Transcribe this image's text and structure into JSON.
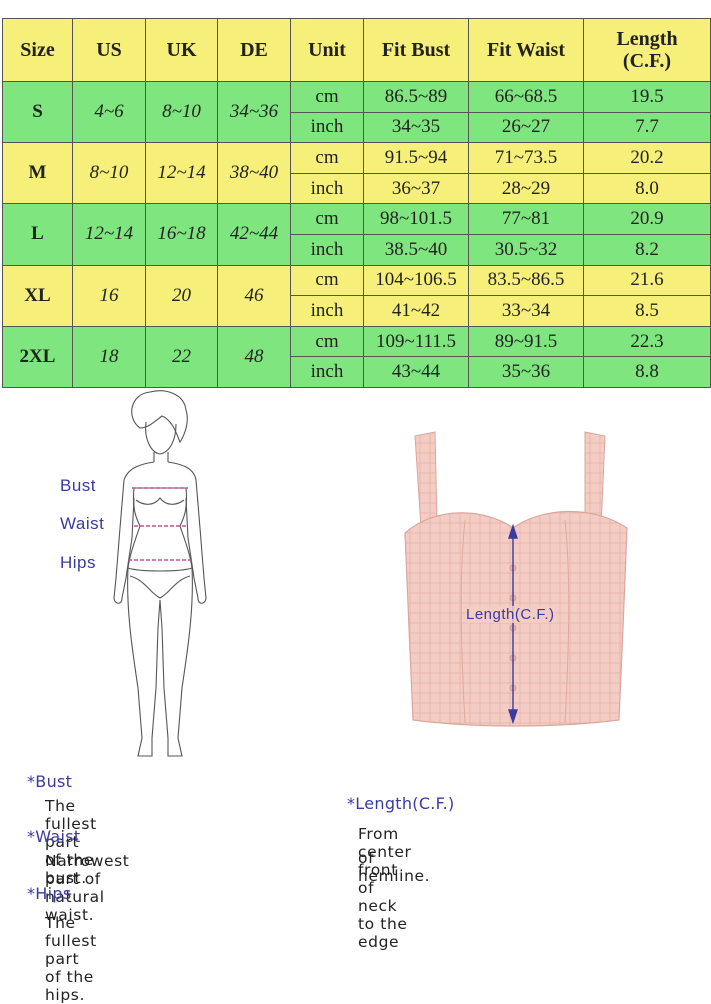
{
  "table": {
    "headers": [
      "Size",
      "US",
      "UK",
      "DE",
      "Unit",
      "Fit Bust",
      "Fit Waist",
      "Length (C.F.)"
    ],
    "rows": [
      {
        "size": "S",
        "us": "4~6",
        "uk": "8~10",
        "de": "34~36",
        "color": "#7fe57e",
        "cm": {
          "unit": "cm",
          "bust": "86.5~89",
          "waist": "66~68.5",
          "length": "19.5"
        },
        "inch": {
          "unit": "inch",
          "bust": "34~35",
          "waist": "26~27",
          "length": "7.7"
        }
      },
      {
        "size": "M",
        "us": "8~10",
        "uk": "12~14",
        "de": "38~40",
        "color": "#f6f07a",
        "cm": {
          "unit": "cm",
          "bust": "91.5~94",
          "waist": "71~73.5",
          "length": "20.2"
        },
        "inch": {
          "unit": "inch",
          "bust": "36~37",
          "waist": "28~29",
          "length": "8.0"
        }
      },
      {
        "size": "L",
        "us": "12~14",
        "uk": "16~18",
        "de": "42~44",
        "color": "#7fe57e",
        "cm": {
          "unit": "cm",
          "bust": "98~101.5",
          "waist": "77~81",
          "length": "20.9"
        },
        "inch": {
          "unit": "inch",
          "bust": "38.5~40",
          "waist": "30.5~32",
          "length": "8.2"
        }
      },
      {
        "size": "XL",
        "us": "16",
        "uk": "20",
        "de": "46",
        "color": "#f6f07a",
        "cm": {
          "unit": "cm",
          "bust": "104~106.5",
          "waist": "83.5~86.5",
          "length": "21.6"
        },
        "inch": {
          "unit": "inch",
          "bust": "41~42",
          "waist": "33~34",
          "length": "8.5"
        }
      },
      {
        "size": "2XL",
        "us": "18",
        "uk": "22",
        "de": "48",
        "color": "#7fe57e",
        "cm": {
          "unit": "cm",
          "bust": "109~111.5",
          "waist": "89~91.5",
          "length": "22.3"
        },
        "inch": {
          "unit": "inch",
          "bust": "43~44",
          "waist": "35~36",
          "length": "8.8"
        }
      }
    ]
  },
  "diagram": {
    "bust_label": "Bust",
    "waist_label": "Waist",
    "hips_label": "Hips",
    "length_label": "Length(C.F.)"
  },
  "notes": {
    "bust_title": "*Bust",
    "bust_desc": "The fullest part of the bust.",
    "waist_title": "*Waist",
    "waist_desc": "Narrowest part of natural waist.",
    "hips_title": "*Hips",
    "hips_desc": "The fullest part of the hips.",
    "length_title": "*Length(C.F.)",
    "length_desc_1": "From center front of neck to the edge",
    "length_desc_2": "of hemline."
  },
  "colors": {
    "yellow": "#f6f07a",
    "green": "#7fe57e",
    "accent": "#3a3aa0",
    "top": "#f2c9c0"
  }
}
